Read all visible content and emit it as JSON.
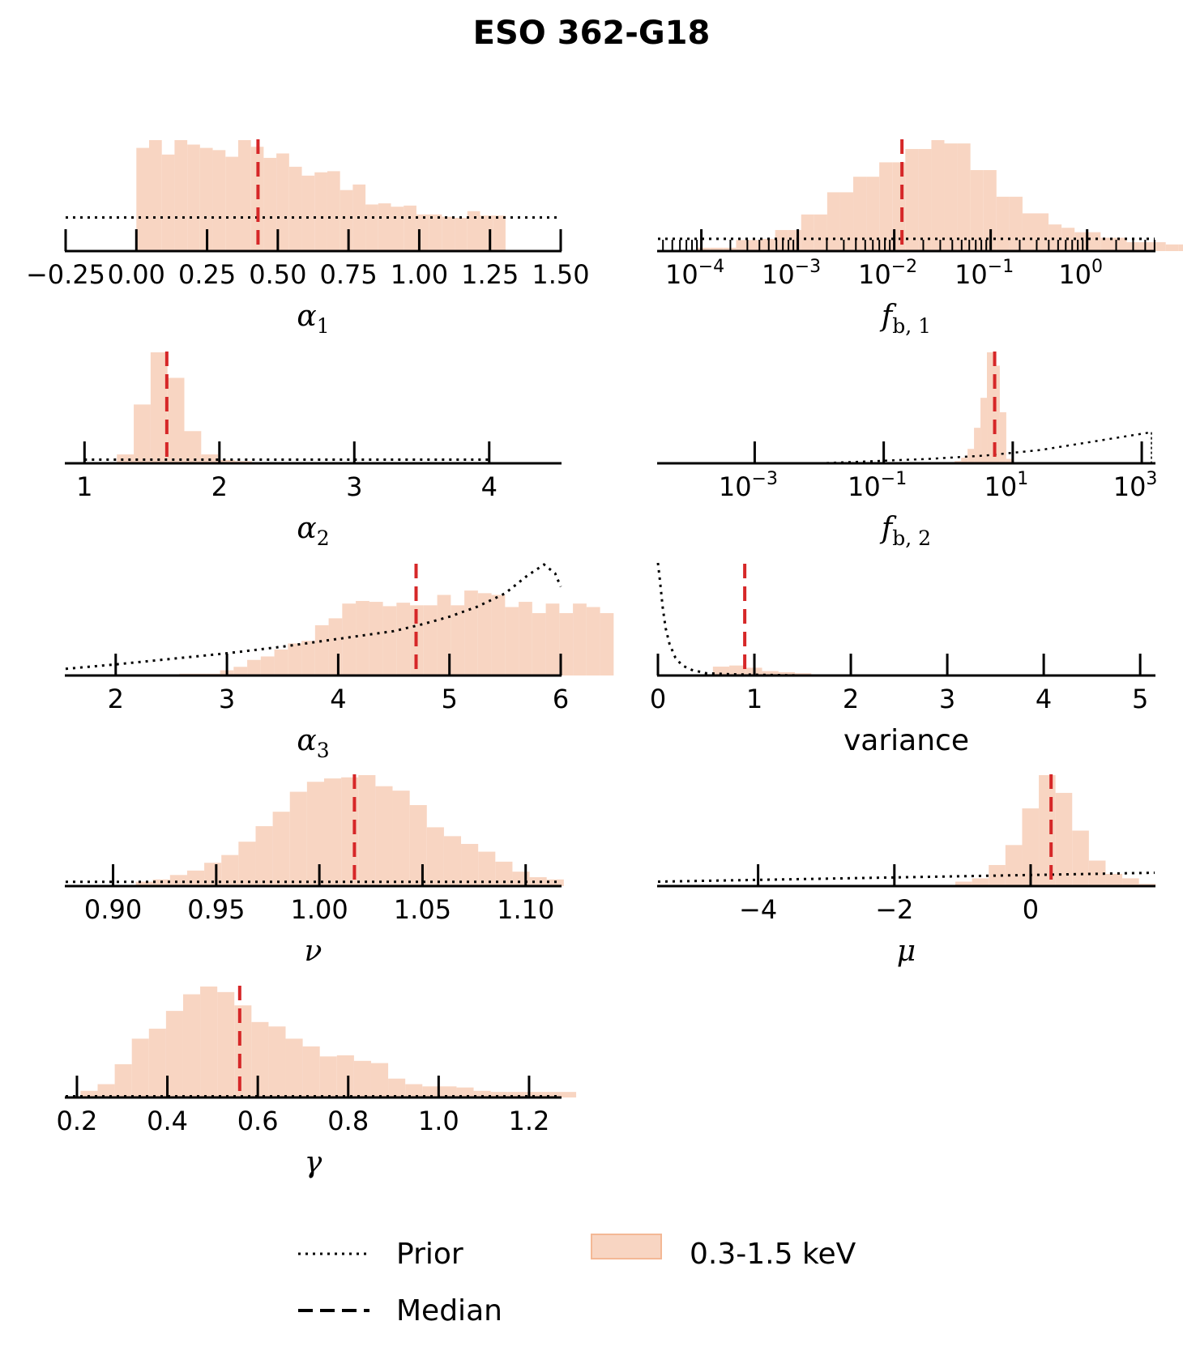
{
  "title": "ESO 362-G18",
  "colors": {
    "histogram_fill": "#f8d5c2",
    "histogram_edge": "#f4b895",
    "median_line": "#d62728",
    "prior_line": "#000000",
    "axis": "#000000"
  },
  "legend": {
    "items": [
      {
        "label": "Prior",
        "style": "dotted"
      },
      {
        "label": "Median",
        "style": "dashed"
      },
      {
        "label": "0.3-1.5 keV",
        "style": "patch"
      }
    ]
  },
  "chart_data": [
    {
      "id": "alpha1",
      "type": "bar",
      "xlabel": "α",
      "xlabel_sub": "1",
      "xscale": "linear",
      "xlim": [
        -0.25,
        1.5
      ],
      "ticks": [
        -0.25,
        0.0,
        0.25,
        0.5,
        0.75,
        1.0,
        1.25,
        1.5
      ],
      "tick_labels": [
        "−0.25",
        "0.00",
        "0.25",
        "0.50",
        "0.75",
        "1.00",
        "1.25",
        "1.50"
      ],
      "median": 0.43,
      "bins": {
        "start": 0.0,
        "width": 0.045,
        "values": [
          0.93,
          1.0,
          0.87,
          1.0,
          0.96,
          0.93,
          0.91,
          0.85,
          1.0,
          0.94,
          0.84,
          0.88,
          0.76,
          0.68,
          0.71,
          0.72,
          0.55,
          0.6,
          0.42,
          0.43,
          0.4,
          0.41,
          0.33,
          0.33,
          0.31,
          0.3,
          0.36,
          0.32,
          0.32
        ]
      },
      "prior": {
        "kind": "flat",
        "x": [
          -0.25,
          1.5
        ],
        "level": 0.55
      }
    },
    {
      "id": "fb1",
      "type": "bar",
      "xlabel": "f",
      "xlabel_sub": "b, 1",
      "xscale": "log",
      "xlim_log10": [
        -4.45,
        0.7
      ],
      "ticks_log10": [
        -4,
        -3,
        -2,
        -1,
        0
      ],
      "tick_labels": [
        "10",
        "10",
        "10",
        "10",
        "10"
      ],
      "tick_exps": [
        "−4",
        "−3",
        "−2",
        "−1",
        "0"
      ],
      "median_log10": -1.92,
      "bins": {
        "start_log10": -4.45,
        "width_log10": 0.135,
        "values": [
          0.01,
          0.01,
          0.0,
          0.03,
          0.03,
          0.03,
          0.1,
          0.1,
          0.11,
          0.19,
          0.19,
          0.33,
          0.33,
          0.53,
          0.53,
          0.67,
          0.67,
          0.8,
          0.8,
          0.92,
          0.92,
          1.0,
          0.97,
          0.97,
          0.73,
          0.73,
          0.49,
          0.49,
          0.34,
          0.34,
          0.24,
          0.21,
          0.17,
          0.17,
          0.12,
          0.12,
          0.08,
          0.08,
          0.08,
          0.06,
          0.06,
          0.06,
          0.06,
          0.06,
          0.04,
          0.04,
          0.08,
          0.08,
          0.08,
          0.15,
          0.15,
          0.15
        ]
      },
      "prior": {
        "kind": "flat",
        "level": 0.2
      }
    },
    {
      "id": "alpha2",
      "type": "bar",
      "xlabel": "α",
      "xlabel_sub": "2",
      "xscale": "linear",
      "xlim": [
        0.86,
        4.53
      ],
      "ticks": [
        1,
        2,
        3,
        4
      ],
      "tick_labels": [
        "1",
        "2",
        "3",
        "4"
      ],
      "median": 1.61,
      "bins": {
        "start": 1.24,
        "width": 0.125,
        "values": [
          0.08,
          0.53,
          1.0,
          0.77,
          0.29,
          0.08,
          0.03,
          0.02,
          0.01,
          0.0
        ]
      },
      "prior": {
        "kind": "flat",
        "x": [
          1.0,
          4.0
        ],
        "level": 0.06
      }
    },
    {
      "id": "fb2",
      "type": "bar",
      "xlabel": "f",
      "xlabel_sub": "b, 2",
      "xscale": "log",
      "xlim_log10": [
        -4.5,
        3.2
      ],
      "ticks_log10": [
        -3,
        -1,
        1,
        3
      ],
      "tick_labels": [
        "10",
        "10",
        "10",
        "10"
      ],
      "tick_exps": [
        "−3",
        "−1",
        "1",
        "3"
      ],
      "median_log10": 0.72,
      "bins": {
        "start_log10": 0.0,
        "width_log10": 0.1,
        "values": [
          0.01,
          0.02,
          0.05,
          0.13,
          0.32,
          0.59,
          1.0,
          0.88,
          0.46,
          0.04,
          0.01
        ]
      },
      "prior": {
        "kind": "loguniform_rising",
        "x_log10": [
          -2.0,
          3.15
        ],
        "levels": [
          0.0,
          0.02,
          0.04,
          0.07,
          0.12,
          0.2,
          0.28
        ]
      }
    },
    {
      "id": "alpha3",
      "type": "bar",
      "xlabel": "α",
      "xlabel_sub": "3",
      "xscale": "linear",
      "xlim": [
        1.55,
        6.0
      ],
      "ticks": [
        2,
        3,
        4,
        5,
        6
      ],
      "tick_labels": [
        "2",
        "3",
        "4",
        "5",
        "6"
      ],
      "median": 4.7,
      "bins": {
        "start": 2.45,
        "width": 0.122,
        "values": [
          0.01,
          0.02,
          0.02,
          0.02,
          0.06,
          0.1,
          0.18,
          0.22,
          0.3,
          0.37,
          0.4,
          0.58,
          0.66,
          0.83,
          0.86,
          0.85,
          0.8,
          0.84,
          0.81,
          0.81,
          0.93,
          0.81,
          0.98,
          0.95,
          0.93,
          0.79,
          0.85,
          0.72,
          0.83,
          0.72,
          0.83,
          0.79,
          0.72
        ]
      },
      "prior": {
        "kind": "curve",
        "x": [
          1.55,
          2.0,
          2.5,
          3.0,
          3.5,
          4.0,
          4.5,
          4.75,
          5.0,
          5.25,
          5.5,
          5.7,
          5.85,
          5.95,
          6.0
        ],
        "y": [
          0.06,
          0.1,
          0.15,
          0.2,
          0.26,
          0.33,
          0.4,
          0.46,
          0.53,
          0.62,
          0.74,
          0.9,
          1.0,
          0.92,
          0.8
        ]
      }
    },
    {
      "id": "variance",
      "type": "bar",
      "xlabel": "variance",
      "xlabel_sub": "",
      "xscale": "linear",
      "xlim": [
        0.0,
        5.15
      ],
      "ticks": [
        0,
        1,
        2,
        3,
        4,
        5
      ],
      "tick_labels": [
        "0",
        "1",
        "2",
        "3",
        "4",
        "5"
      ],
      "median": 0.9,
      "bins": {
        "start": 0.4,
        "width": 0.17,
        "values": [
          0.01,
          0.08,
          0.09,
          0.07,
          0.04,
          0.03,
          0.02,
          0.01,
          0.01
        ]
      },
      "prior": {
        "kind": "curve",
        "x": [
          0.0,
          0.02,
          0.05,
          0.08,
          0.12,
          0.18,
          0.25,
          0.35,
          0.5,
          0.8,
          1.5,
          5.15
        ],
        "y": [
          1.0,
          0.85,
          0.6,
          0.42,
          0.28,
          0.16,
          0.09,
          0.05,
          0.02,
          0.01,
          0.0,
          0.0
        ]
      }
    },
    {
      "id": "nu",
      "type": "bar",
      "xlabel": "ν",
      "xlabel_sub": "",
      "xscale": "linear",
      "xlim": [
        0.877,
        1.117
      ],
      "ticks": [
        0.9,
        0.95,
        1.0,
        1.05,
        1.1
      ],
      "tick_labels": [
        "0.90",
        "0.95",
        "1.00",
        "1.05",
        "1.10"
      ],
      "median": 1.017,
      "bins": {
        "start": 0.911,
        "width": 0.0083,
        "values": [
          0.04,
          0.06,
          0.1,
          0.14,
          0.21,
          0.28,
          0.4,
          0.54,
          0.67,
          0.85,
          0.94,
          0.97,
          0.98,
          1.0,
          0.9,
          0.86,
          0.73,
          0.53,
          0.45,
          0.38,
          0.31,
          0.22,
          0.13,
          0.08,
          0.06
        ]
      },
      "prior": {
        "kind": "flat",
        "level": 0.07
      }
    },
    {
      "id": "mu",
      "type": "bar",
      "xlabel": "μ",
      "xlabel_sub": "",
      "xscale": "linear",
      "xlim": [
        -5.47,
        1.82
      ],
      "ticks": [
        -4,
        -2,
        0
      ],
      "tick_labels": [
        "−4",
        "−2",
        "0"
      ],
      "median": 0.3,
      "bins": {
        "start": -1.35,
        "width": 0.245,
        "values": [
          0.01,
          0.04,
          0.07,
          0.19,
          0.37,
          0.7,
          1.0,
          0.84,
          0.5,
          0.23,
          0.11,
          0.07,
          0.02
        ]
      },
      "prior": {
        "kind": "linear",
        "x": [
          -5.47,
          1.82
        ],
        "y": [
          0.04,
          0.12
        ]
      }
    },
    {
      "id": "gamma",
      "type": "bar",
      "xlabel": "γ",
      "xlabel_sub": "",
      "xscale": "linear",
      "xlim": [
        0.175,
        1.27
      ],
      "ticks": [
        0.2,
        0.4,
        0.6,
        0.8,
        1.0,
        1.2
      ],
      "tick_labels": [
        "0.2",
        "0.4",
        "0.6",
        "0.8",
        "1.0",
        "1.2"
      ],
      "median": 0.56,
      "bins": {
        "start": 0.208,
        "width": 0.0378,
        "values": [
          0.06,
          0.12,
          0.3,
          0.53,
          0.62,
          0.78,
          0.93,
          1.0,
          0.95,
          0.83,
          0.68,
          0.64,
          0.53,
          0.46,
          0.37,
          0.38,
          0.33,
          0.31,
          0.17,
          0.12,
          0.1,
          0.1,
          0.09,
          0.06,
          0.05,
          0.05,
          0.05,
          0.05,
          0.05
        ]
      },
      "prior": {
        "kind": "flat",
        "level": 0.02
      }
    }
  ]
}
